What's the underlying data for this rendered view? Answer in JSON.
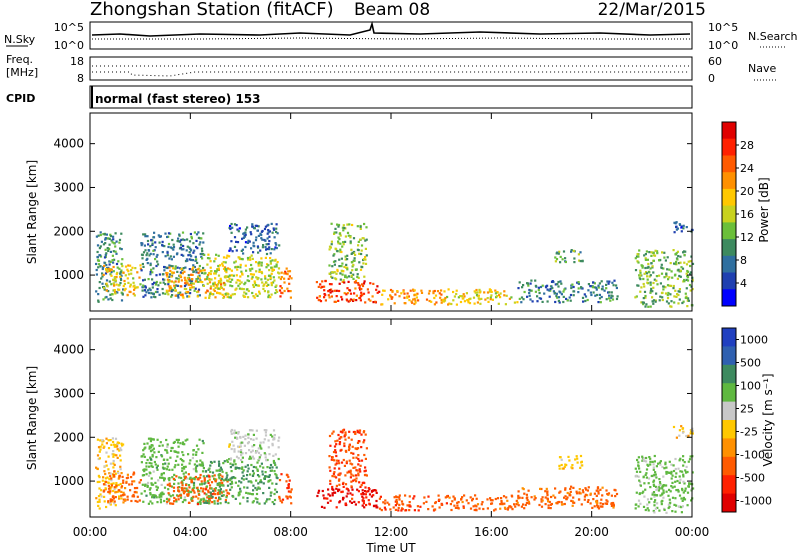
{
  "header": {
    "station": "Zhongshan Station (fitACF)",
    "beam": "Beam 08",
    "date": "22/Mar/2015"
  },
  "noise_panel": {
    "left_label": "N.Sky",
    "right_label": "N.Search",
    "ticks_left": [
      "10^5",
      "10^0"
    ],
    "ticks_right": [
      "10^5",
      "10^0"
    ]
  },
  "freq_panel": {
    "left_label_1": "Freq.",
    "left_label_2": "[MHz]",
    "right_label": "Nave",
    "ticks_left": [
      "18",
      "8"
    ],
    "ticks_right": [
      "60",
      "0"
    ]
  },
  "cpid": {
    "label": "CPID",
    "text": "normal (fast stereo) 153"
  },
  "chart_data": [
    {
      "type": "heatmap",
      "name": "power",
      "xlabel": "",
      "ylabel": "Slant Range [km]",
      "x_ticks": [
        "00:00",
        "04:00",
        "08:00",
        "12:00",
        "16:00",
        "20:00",
        "00:00"
      ],
      "y_ticks": [
        1000,
        2000,
        3000,
        4000
      ],
      "ylim": [
        180,
        4700
      ],
      "xlim_hours": [
        0,
        24
      ],
      "colorbar": {
        "label": "Power [dB]",
        "ticks": [
          "4",
          "8",
          "12",
          "16",
          "20",
          "24",
          "28"
        ],
        "colors": [
          "#0000ff",
          "#1f3fb0",
          "#2f6f9f",
          "#3d8a5f",
          "#6bbf3a",
          "#c8d21e",
          "#ffc800",
          "#ff9000",
          "#ff5a00",
          "#ff2000",
          "#e00000"
        ]
      },
      "regions": [
        {
          "t0": 0.2,
          "t1": 1.3,
          "r0": 400,
          "r1": 2000,
          "v": 10
        },
        {
          "t0": 0.5,
          "t1": 2.0,
          "r0": 550,
          "r1": 1250,
          "v": 18
        },
        {
          "t0": 2.0,
          "t1": 4.5,
          "r0": 500,
          "r1": 2000,
          "v": 9
        },
        {
          "t0": 3.0,
          "t1": 5.5,
          "r0": 500,
          "r1": 1200,
          "v": 20
        },
        {
          "t0": 4.5,
          "t1": 7.5,
          "r0": 500,
          "r1": 1500,
          "v": 16
        },
        {
          "t0": 5.5,
          "t1": 7.5,
          "r0": 1500,
          "r1": 2200,
          "v": 7
        },
        {
          "t0": 7.5,
          "t1": 8.0,
          "r0": 500,
          "r1": 1200,
          "v": 24
        },
        {
          "t0": 9.0,
          "t1": 11.5,
          "r0": 400,
          "r1": 900,
          "v": 26
        },
        {
          "t0": 9.5,
          "t1": 11.0,
          "r0": 900,
          "r1": 2200,
          "v": 14
        },
        {
          "t0": 11.5,
          "t1": 14.0,
          "r0": 350,
          "r1": 700,
          "v": 22
        },
        {
          "t0": 14.0,
          "t1": 17.0,
          "r0": 350,
          "r1": 700,
          "v": 18
        },
        {
          "t0": 17.0,
          "t1": 21.0,
          "r0": 400,
          "r1": 900,
          "v": 9
        },
        {
          "t0": 18.5,
          "t1": 19.6,
          "r0": 1300,
          "r1": 1600,
          "v": 12
        },
        {
          "t0": 21.7,
          "t1": 24.0,
          "r0": 300,
          "r1": 1600,
          "v": 13
        },
        {
          "t0": 23.2,
          "t1": 24.0,
          "r0": 2000,
          "r1": 2300,
          "v": 6
        }
      ]
    },
    {
      "type": "heatmap",
      "name": "velocity",
      "xlabel": "Time UT",
      "ylabel": "Slant Range [km]",
      "x_ticks": [
        "00:00",
        "04:00",
        "08:00",
        "12:00",
        "16:00",
        "20:00",
        "00:00"
      ],
      "y_ticks": [
        1000,
        2000,
        3000,
        4000
      ],
      "ylim": [
        180,
        4700
      ],
      "xlim_hours": [
        0,
        24
      ],
      "colorbar": {
        "label": "Velocity [m s⁻¹]",
        "ticks": [
          "1000",
          "500",
          "100",
          "25",
          "-25",
          "-100",
          "-500",
          "-1000"
        ],
        "colors": [
          "#2040c0",
          "#2f60b0",
          "#3d8a5f",
          "#5fb840",
          "#c8c8c8",
          "#ffc800",
          "#ff9000",
          "#ff5a00",
          "#ff2000",
          "#e00000"
        ]
      },
      "regions": [
        {
          "t0": 0.2,
          "t1": 1.3,
          "r0": 400,
          "r1": 2000,
          "v": 0
        },
        {
          "t0": 0.5,
          "t1": 2.0,
          "r0": 550,
          "r1": 1250,
          "v": -150
        },
        {
          "t0": 2.0,
          "t1": 4.5,
          "r0": 500,
          "r1": 2000,
          "v": 200
        },
        {
          "t0": 3.0,
          "t1": 5.5,
          "r0": 500,
          "r1": 1200,
          "v": -200
        },
        {
          "t0": 4.5,
          "t1": 7.5,
          "r0": 500,
          "r1": 1500,
          "v": 300
        },
        {
          "t0": 5.5,
          "t1": 7.5,
          "r0": 1500,
          "r1": 2200,
          "v": 80
        },
        {
          "t0": 7.5,
          "t1": 8.0,
          "r0": 500,
          "r1": 1200,
          "v": -300
        },
        {
          "t0": 9.0,
          "t1": 11.5,
          "r0": 400,
          "r1": 900,
          "v": -600
        },
        {
          "t0": 9.5,
          "t1": 11.0,
          "r0": 900,
          "r1": 2200,
          "v": -300
        },
        {
          "t0": 11.5,
          "t1": 14.0,
          "r0": 350,
          "r1": 700,
          "v": -250
        },
        {
          "t0": 14.0,
          "t1": 17.0,
          "r0": 350,
          "r1": 700,
          "v": -200
        },
        {
          "t0": 17.0,
          "t1": 21.0,
          "r0": 400,
          "r1": 900,
          "v": -150
        },
        {
          "t0": 18.5,
          "t1": 19.6,
          "r0": 1300,
          "r1": 1600,
          "v": 0
        },
        {
          "t0": 21.7,
          "t1": 24.0,
          "r0": 300,
          "r1": 1600,
          "v": 150
        },
        {
          "t0": 23.2,
          "t1": 24.0,
          "r0": 2000,
          "r1": 2300,
          "v": 0
        }
      ]
    }
  ]
}
